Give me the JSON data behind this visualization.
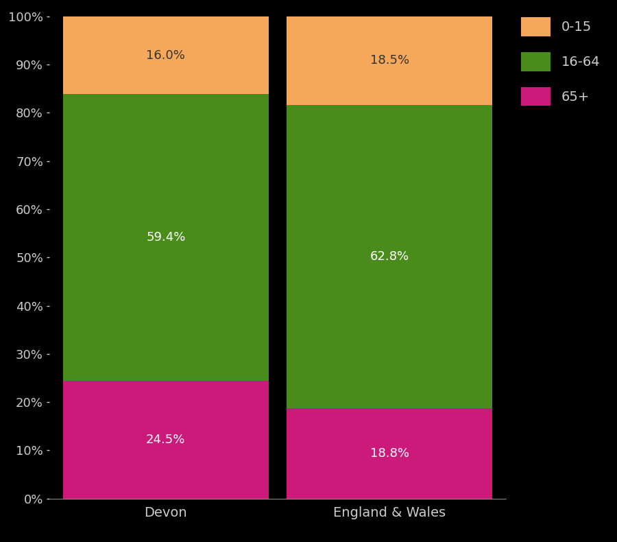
{
  "categories": [
    "Devon",
    "England & Wales"
  ],
  "segments": {
    "65+": [
      24.5,
      18.8
    ],
    "16-64": [
      59.4,
      62.8
    ],
    "0-15": [
      16.0,
      18.5
    ]
  },
  "colors": {
    "65+": "#cc1a7a",
    "16-64": "#4a8c1c",
    "0-15": "#f5a85a"
  },
  "label_colors": {
    "65+": "white",
    "16-64": "white",
    "0-15": "#333333"
  },
  "background_color": "#000000",
  "text_color": "#cccccc",
  "yticks": [
    0,
    10,
    20,
    30,
    40,
    50,
    60,
    70,
    80,
    90,
    100
  ],
  "ytick_labels": [
    "0%",
    "10%",
    "20%",
    "30%",
    "40%",
    "50%",
    "60%",
    "70%",
    "80%",
    "90%",
    "100%"
  ],
  "bar_width": 0.92,
  "figsize": [
    9.0,
    7.9
  ],
  "dpi": 100
}
